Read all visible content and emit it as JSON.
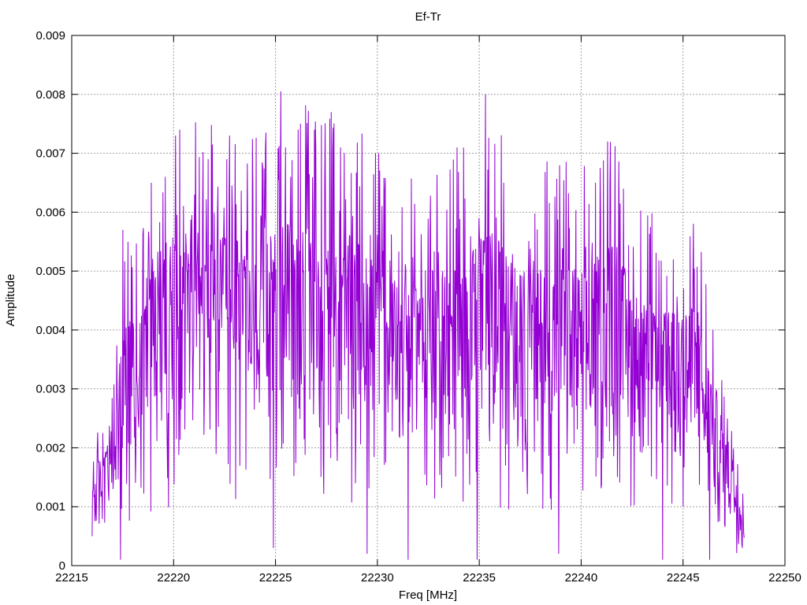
{
  "chart_data": {
    "type": "line",
    "title": "Ef-Tr",
    "xlabel": "Freq [MHz]",
    "ylabel": "Amplitude",
    "xlim": [
      22215,
      22250
    ],
    "ylim": [
      0,
      0.009
    ],
    "x_ticks": [
      22215,
      22220,
      22225,
      22230,
      22235,
      22240,
      22245,
      22250
    ],
    "y_ticks": [
      0,
      0.001,
      0.002,
      0.003,
      0.004,
      0.005,
      0.006,
      0.007,
      0.008,
      0.009
    ],
    "x_tick_labels": [
      "22215",
      "22220",
      "22225",
      "22230",
      "22235",
      "22240",
      "22245",
      "22250"
    ],
    "y_tick_labels": [
      "0",
      "0.001",
      "0.002",
      "0.003",
      "0.004",
      "0.005",
      "0.006",
      "0.007",
      "0.008",
      "0.009"
    ],
    "grid": true,
    "series": [
      {
        "color": "#9400d3",
        "x_start": 22216.0,
        "x_end": 22248.0,
        "envelope": [
          [
            22216.0,
            0.0016
          ],
          [
            22217.0,
            0.0022
          ],
          [
            22217.5,
            0.004
          ],
          [
            22218.5,
            0.005
          ],
          [
            22219.5,
            0.0055
          ],
          [
            22220.5,
            0.0058
          ],
          [
            22222.0,
            0.0056
          ],
          [
            22224.0,
            0.0055
          ],
          [
            22225.0,
            0.006
          ],
          [
            22226.5,
            0.0058
          ],
          [
            22228.0,
            0.0057
          ],
          [
            22230.0,
            0.0054
          ],
          [
            22232.0,
            0.005
          ],
          [
            22234.0,
            0.0052
          ],
          [
            22235.5,
            0.0058
          ],
          [
            22237.0,
            0.005
          ],
          [
            22238.5,
            0.0052
          ],
          [
            22240.0,
            0.005
          ],
          [
            22241.5,
            0.0055
          ],
          [
            22243.0,
            0.0045
          ],
          [
            22244.5,
            0.0043
          ],
          [
            22245.5,
            0.0045
          ],
          [
            22246.5,
            0.0032
          ],
          [
            22247.3,
            0.002
          ],
          [
            22248.0,
            0.0012
          ]
        ],
        "peaks": [
          [
            22217.5,
            0.0057
          ],
          [
            22218.9,
            0.0065
          ],
          [
            22219.6,
            0.0066
          ],
          [
            22220.1,
            0.0073
          ],
          [
            22220.3,
            0.0074
          ],
          [
            22221.7,
            0.0069
          ],
          [
            22222.6,
            0.0069
          ],
          [
            22224.5,
            0.0071
          ],
          [
            22224.9,
            0.0075
          ],
          [
            22225.5,
            0.0071
          ],
          [
            22226.1,
            0.0074
          ],
          [
            22226.9,
            0.0074
          ],
          [
            22228.2,
            0.0071
          ],
          [
            22229.9,
            0.007
          ],
          [
            22233.9,
            0.0071
          ],
          [
            22235.3,
            0.008
          ],
          [
            22236.2,
            0.0065
          ],
          [
            22240.7,
            0.0065
          ],
          [
            22241.3,
            0.0072
          ],
          [
            22245.5,
            0.0058
          ]
        ],
        "troughs": [
          [
            22216.0,
            0.0005
          ],
          [
            22217.4,
            0.0001
          ],
          [
            22224.9,
            0.0003
          ],
          [
            22229.5,
            0.0002
          ],
          [
            22231.5,
            0.0001
          ],
          [
            22234.9,
            0.0001
          ],
          [
            22238.9,
            0.0002
          ],
          [
            22244.0,
            0.0001
          ],
          [
            22246.3,
            0.0001
          ],
          [
            22247.9,
            0.0003
          ]
        ]
      }
    ]
  }
}
